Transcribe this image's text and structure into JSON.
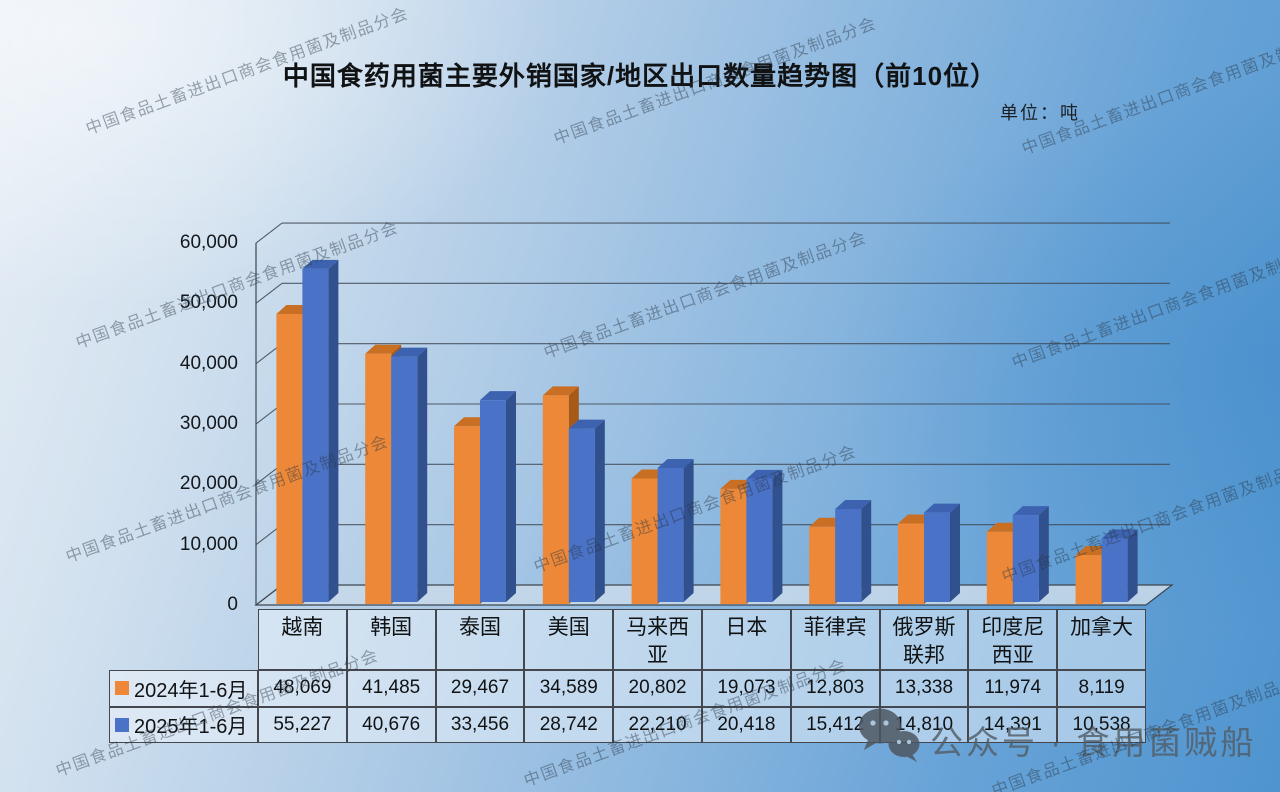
{
  "title": "中国食药用菌主要外销国家/地区出口数量趋势图（前10位）",
  "unit_label": "单位：吨",
  "watermark_text": "中国食品土畜进出口商会食用菌及制品分会",
  "branding": {
    "icon": "wechat-icon",
    "text": "公众号 · 食用菌贼船"
  },
  "chart_data": {
    "type": "bar",
    "subtype": "3d-clustered-column",
    "title": "中国食药用菌主要外销国家/地区出口数量趋势图（前10位）",
    "unit": "吨",
    "categories": [
      "越南",
      "韩国",
      "泰国",
      "美国",
      "马来西亚",
      "日本",
      "菲律宾",
      "俄罗斯联邦",
      "印度尼西亚",
      "加拿大"
    ],
    "series": [
      {
        "name": "2024年1-6月",
        "color": "#EC8838",
        "values": [
          48069,
          41485,
          29467,
          34589,
          20802,
          19073,
          12803,
          13338,
          11974,
          8119
        ]
      },
      {
        "name": "2025年1-6月",
        "color": "#4A72C6",
        "values": [
          55227,
          40676,
          33456,
          28742,
          22210,
          20418,
          15412,
          14810,
          14391,
          10538
        ]
      }
    ],
    "ylim": [
      0,
      60000
    ],
    "ytick_step": 10000,
    "yticks": [
      "0",
      "10,000",
      "20,000",
      "30,000",
      "40,000",
      "50,000",
      "60,000"
    ],
    "grid": true,
    "legend_position": "table-rows-left",
    "value_table": true
  },
  "colors": {
    "series_2024": {
      "front": "#EC8838",
      "top": "#C96F23",
      "side": "#A75A18"
    },
    "series_2025": {
      "front": "#4A72C6",
      "top": "#3D63B0",
      "side": "#31508E"
    },
    "gridline": "#3E4650",
    "floor": "#C5D8E9",
    "table_border": "#44484E",
    "watermark": "#283442",
    "branding_gray": "#525E68",
    "background": [
      "#E7EEF6",
      "#CFDFEE",
      "#ABC9E5",
      "#85B3DD",
      "#4F94CF"
    ]
  }
}
